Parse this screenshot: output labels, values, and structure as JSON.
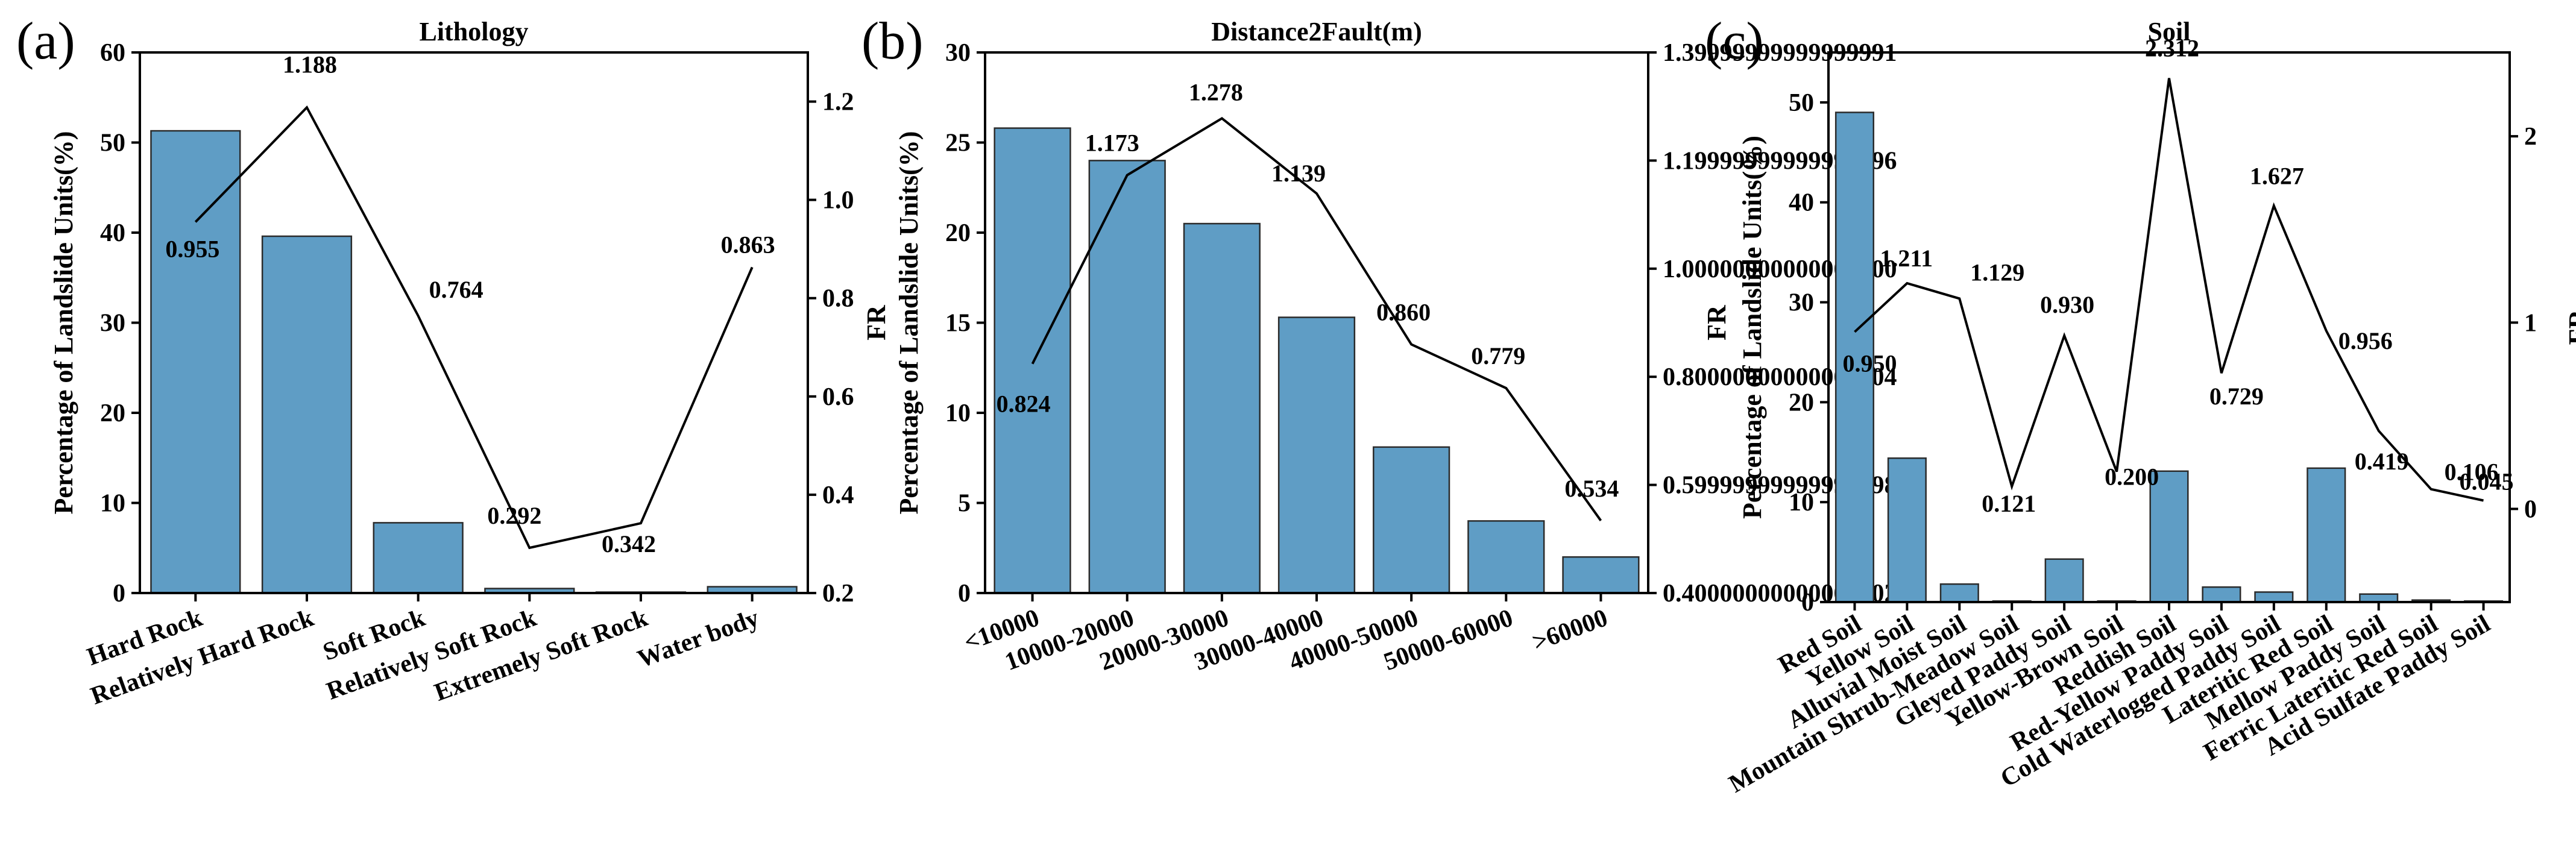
{
  "figure": {
    "panels": [
      "(a)",
      "(b)",
      "(c)"
    ]
  },
  "chart_data": [
    {
      "type": "bar",
      "panel": "(a)",
      "title": "Lithology",
      "ylabel": "Percentage of Landslide Units(%)",
      "y2label": "FR",
      "ylim": [
        0,
        60
      ],
      "y2lim": [
        0.2,
        1.3
      ],
      "yticks": [
        0,
        10,
        20,
        30,
        40,
        50,
        60
      ],
      "y2ticks": [
        0.2,
        0.4,
        0.6,
        0.8,
        1.0,
        1.2
      ],
      "categories": [
        "Hard Rock",
        "Relatively Hard Rock",
        "Soft Rock",
        "Relatively Soft Rock",
        "Extremely Soft Rock",
        "Water body"
      ],
      "series": [
        {
          "name": "Percentage of Landslide Units(%)",
          "axis": "left",
          "kind": "bar",
          "values": [
            51.3,
            39.6,
            7.8,
            0.5,
            0.1,
            0.7
          ]
        },
        {
          "name": "FR",
          "axis": "right",
          "kind": "line",
          "values": [
            0.955,
            1.188,
            0.764,
            0.292,
            0.342,
            0.863
          ],
          "labels": [
            "0.955",
            "1.188",
            "0.764",
            "0.292",
            "0.342",
            "0.863"
          ]
        }
      ]
    },
    {
      "type": "bar",
      "panel": "(b)",
      "title": "Distance2Fault(m)",
      "ylabel": "Percentage of Landslide Units(%)",
      "y2label": "FR",
      "ylim": [
        0,
        30
      ],
      "y2lim": [
        0.4,
        1.4
      ],
      "yticks": [
        0,
        5,
        10,
        15,
        20,
        25,
        30
      ],
      "y2ticks": [
        0.4,
        0.6,
        0.8,
        1.0,
        1.2,
        1.4
      ],
      "categories": [
        "<10000",
        "10000-20000",
        "20000-30000",
        "30000-40000",
        "40000-50000",
        "50000-60000",
        ">60000"
      ],
      "series": [
        {
          "name": "Percentage of Landslide Units(%)",
          "axis": "left",
          "kind": "bar",
          "values": [
            25.8,
            24.0,
            20.5,
            15.3,
            8.1,
            4.0,
            2.0
          ]
        },
        {
          "name": "FR",
          "axis": "right",
          "kind": "line",
          "values": [
            0.824,
            1.173,
            1.278,
            1.139,
            0.86,
            0.779,
            0.534
          ],
          "labels": [
            "0.824",
            "1.173",
            "1.278",
            "1.139",
            "0.860",
            "0.779",
            "0.534"
          ]
        }
      ]
    },
    {
      "type": "bar",
      "panel": "(c)",
      "title": "Soil",
      "ylabel": "Percentage of Landslide Units(%)",
      "y2label": "FR",
      "ylim": [
        0,
        55
      ],
      "y2lim": [
        -0.5,
        2.45
      ],
      "yticks": [
        0,
        10,
        20,
        30,
        40,
        50
      ],
      "y2ticks": [
        0,
        1,
        2
      ],
      "categories": [
        "Red Soil",
        "Yellow Soil",
        "Alluvial Moist Soil",
        "Mountain Shrub-Meadow Soil",
        "Gleyed Paddy Soil",
        "Yellow-Brown Soil",
        "Reddish Soil",
        "Red-Yellow Paddy Soil",
        "Cold Waterlogged Paddy Soil",
        "Lateritic Red Soil",
        "Mellow Paddy Soil",
        "Ferric Lateritic Red Soil",
        "Acid Sulfate Paddy Soil"
      ],
      "series": [
        {
          "name": "Percentage of Landslide Units(%)",
          "axis": "left",
          "kind": "bar",
          "values": [
            49.0,
            14.4,
            1.8,
            0.1,
            4.3,
            0.1,
            13.1,
            1.5,
            1.0,
            13.4,
            0.8,
            0.2,
            0.1
          ]
        },
        {
          "name": "FR",
          "axis": "right",
          "kind": "line",
          "values": [
            0.95,
            1.211,
            1.129,
            0.121,
            0.93,
            0.2,
            2.312,
            0.729,
            1.627,
            0.956,
            0.419,
            0.106,
            0.045
          ],
          "labels": [
            "0.950",
            "1.211",
            "1.129",
            "0.121",
            "0.930",
            "0.200",
            "2.312",
            "0.729",
            "1.627",
            "0.956",
            "0.419",
            "0.106",
            "0.045"
          ]
        }
      ]
    }
  ],
  "colors": {
    "bar_fill": "#5f9dc5",
    "bar_edge": "#2b2b2b",
    "line": "#000000",
    "axis": "#000000"
  }
}
